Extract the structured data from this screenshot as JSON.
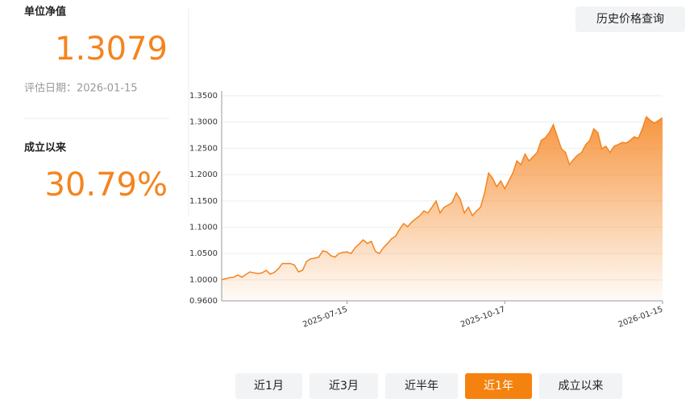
{
  "panel": {
    "nav_label": "单位净值",
    "nav_value": "1.3079",
    "date_text": "评估日期：2026-01-15",
    "return_label": "成立以来",
    "return_value": "30.79%"
  },
  "button": "历史价格查询",
  "chart_data": {
    "type": "area",
    "color": "#f5841f",
    "grid": true,
    "categories": [
      null,
      null,
      null,
      null,
      null,
      null,
      null,
      null,
      null,
      null,
      null,
      null,
      null,
      null,
      null,
      null,
      null,
      null,
      null,
      null,
      null,
      null,
      null,
      null,
      null,
      null,
      null,
      null,
      null,
      null,
      null,
      "2025-07-15",
      null,
      null,
      null,
      null,
      null,
      null,
      null,
      null,
      null,
      null,
      null,
      null,
      null,
      null,
      null,
      null,
      null,
      null,
      null,
      null,
      null,
      null,
      null,
      null,
      null,
      null,
      null,
      null,
      null,
      null,
      null,
      null,
      null,
      null,
      null,
      null,
      null,
      null,
      "2025-10-17",
      null,
      null,
      null,
      null,
      null,
      null,
      null,
      null,
      null,
      null,
      null,
      null,
      null,
      null,
      null,
      null,
      null,
      null,
      null,
      null,
      null,
      null,
      null,
      null,
      null,
      null,
      null,
      null,
      null,
      null,
      null,
      null,
      null,
      null,
      null,
      null,
      null,
      null,
      "2026-01-15"
    ],
    "values": [
      1.0,
      1.002,
      1.004,
      1.005,
      1.009,
      1.005,
      1.01,
      1.015,
      1.013,
      1.012,
      1.013,
      1.018,
      1.011,
      1.014,
      1.021,
      1.031,
      1.031,
      1.031,
      1.028,
      1.015,
      1.018,
      1.035,
      1.04,
      1.041,
      1.043,
      1.055,
      1.053,
      1.046,
      1.043,
      1.05,
      1.052,
      1.053,
      1.05,
      1.061,
      1.068,
      1.076,
      1.069,
      1.073,
      1.054,
      1.05,
      1.061,
      1.069,
      1.078,
      1.083,
      1.096,
      1.107,
      1.101,
      1.11,
      1.116,
      1.122,
      1.131,
      1.127,
      1.138,
      1.15,
      1.127,
      1.138,
      1.142,
      1.147,
      1.165,
      1.153,
      1.127,
      1.138,
      1.122,
      1.131,
      1.138,
      1.165,
      1.203,
      1.193,
      1.177,
      1.188,
      1.173,
      1.188,
      1.203,
      1.226,
      1.219,
      1.239,
      1.226,
      1.234,
      1.242,
      1.265,
      1.27,
      1.28,
      1.295,
      1.272,
      1.249,
      1.242,
      1.219,
      1.229,
      1.237,
      1.242,
      1.257,
      1.265,
      1.287,
      1.28,
      1.249,
      1.254,
      1.242,
      1.254,
      1.257,
      1.261,
      1.26,
      1.265,
      1.272,
      1.269,
      1.287,
      1.31,
      1.303,
      1.298,
      1.303,
      1.3079
    ],
    "ylim": [
      0.96,
      1.35
    ],
    "yticks": [
      {
        "value": 0.96,
        "label": "0.9600"
      },
      {
        "value": 1.0,
        "label": "1.0000"
      },
      {
        "value": 1.05,
        "label": "1.0500"
      },
      {
        "value": 1.1,
        "label": "1.1000"
      },
      {
        "value": 1.15,
        "label": "1.1500"
      },
      {
        "value": 1.2,
        "label": "1.2000"
      },
      {
        "value": 1.25,
        "label": "1.2500"
      },
      {
        "value": 1.3,
        "label": "1.3000"
      },
      {
        "value": 1.35,
        "label": "1.3500"
      }
    ]
  },
  "tabs": {
    "items": [
      "近1月",
      "近3月",
      "近半年",
      "近1年",
      "成立以来"
    ],
    "active": 3
  }
}
